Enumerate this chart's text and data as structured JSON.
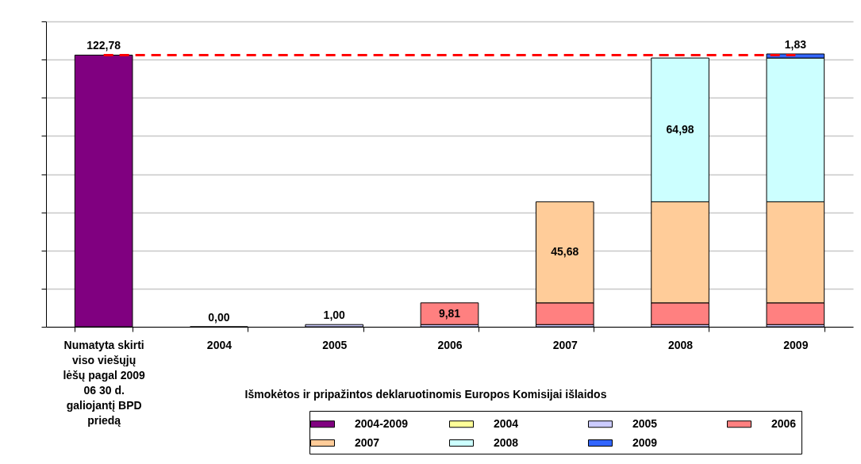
{
  "chart_data": {
    "type": "bar",
    "stacked": true,
    "xlabel": "Išmokėtos ir pripažintos deklaruotinomis Europos Komisijai išlaidos",
    "categories": [
      "Numatyta skirti viso viešųjų lėšų pagal 2009 06 30 d. galiojantį BPD priedą",
      "2004",
      "2005",
      "2006",
      "2007",
      "2008",
      "2009"
    ],
    "series": [
      {
        "name": "2004-2009",
        "color": "#800080",
        "values": [
          122.78,
          null,
          null,
          null,
          null,
          null,
          null
        ],
        "value_labels": [
          "122,78",
          null,
          null,
          null,
          null,
          null,
          null
        ]
      },
      {
        "name": "2004",
        "color": "#ffff99",
        "values": [
          null,
          0,
          0,
          0,
          0,
          0,
          0
        ],
        "value_labels": [
          null,
          "0,00",
          null,
          null,
          null,
          null,
          null
        ]
      },
      {
        "name": "2005",
        "color": "#ccccff",
        "values": [
          null,
          null,
          1.0,
          1.0,
          1.0,
          1.0,
          1.0
        ],
        "value_labels": [
          null,
          null,
          "1,00",
          null,
          null,
          null,
          null
        ]
      },
      {
        "name": "2006",
        "color": "#ff8080",
        "values": [
          null,
          null,
          null,
          9.81,
          9.81,
          9.81,
          9.81
        ],
        "value_labels": [
          null,
          null,
          null,
          "9,81",
          null,
          null,
          null
        ]
      },
      {
        "name": "2007",
        "color": "#ffcc99",
        "values": [
          null,
          null,
          null,
          null,
          45.68,
          45.68,
          45.68
        ],
        "value_labels": [
          null,
          null,
          null,
          null,
          "45,68",
          null,
          null
        ]
      },
      {
        "name": "2008",
        "color": "#ccffff",
        "values": [
          null,
          null,
          null,
          null,
          null,
          64.98,
          64.98
        ],
        "value_labels": [
          null,
          null,
          null,
          null,
          null,
          "64,98",
          null
        ]
      },
      {
        "name": "2009",
        "color": "#3366ff",
        "values": [
          null,
          null,
          null,
          null,
          null,
          null,
          1.83
        ],
        "value_labels": [
          null,
          null,
          null,
          null,
          null,
          null,
          "1,83"
        ]
      }
    ],
    "ylim": [
      0,
      138
    ],
    "yticks": [
      {
        "value": 0,
        "label": null
      },
      {
        "value": 17.25,
        "label": null
      },
      {
        "value": 34.5,
        "label": null
      },
      {
        "value": 51.75,
        "label": null
      },
      {
        "value": 69,
        "label": null
      },
      {
        "value": 86.25,
        "label": null
      },
      {
        "value": 103.5,
        "label": null
      },
      {
        "value": 120.75,
        "label": null
      },
      {
        "value": 138,
        "label": null
      }
    ],
    "tick_labels": "x",
    "grid": "y",
    "legend": "bottom right",
    "ref_lines": [
      {
        "axis": "y",
        "value": 122.78,
        "color": "#ff0000",
        "line_style": "dashed"
      }
    ]
  }
}
